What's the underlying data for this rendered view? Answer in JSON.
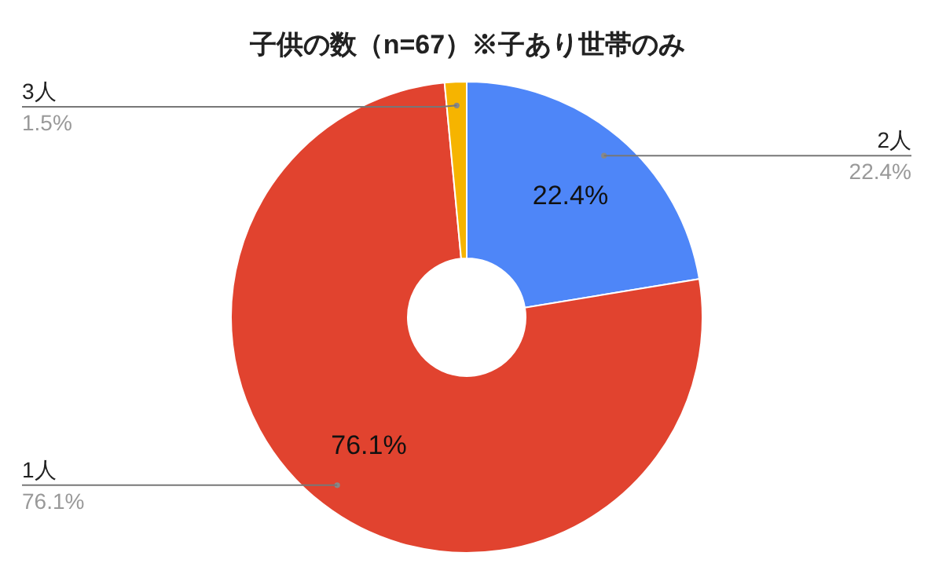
{
  "chart_data": {
    "type": "donut",
    "title": "子供の数（n=67）※子あり世帯のみ",
    "categories": [
      "2人",
      "1人",
      "3人"
    ],
    "values": [
      22.4,
      76.1,
      1.5
    ],
    "colors": [
      "#4e86f8",
      "#e1432f",
      "#f6b400"
    ],
    "value_labels": [
      "22.4%",
      "76.1%",
      "1.5%"
    ]
  }
}
